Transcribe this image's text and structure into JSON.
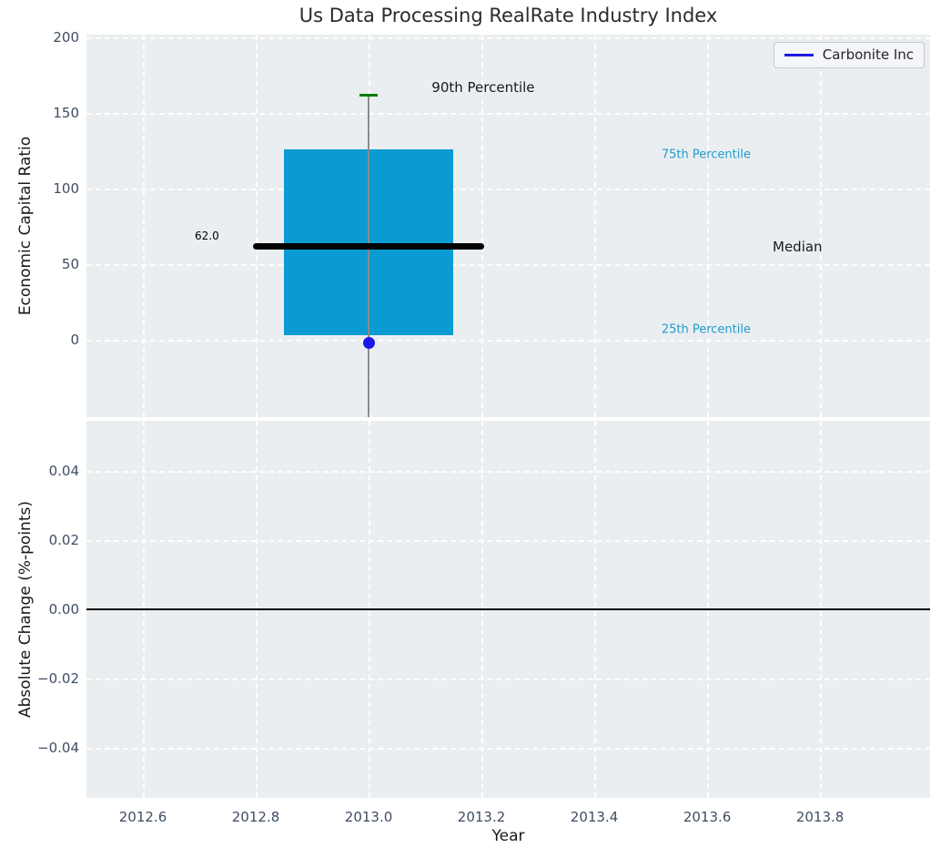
{
  "chart_data": {
    "type": "boxplot",
    "title": "Us Data Processing RealRate Industry Index",
    "legend": {
      "label": "Carbonite Inc",
      "line_color": "#1a1ae8",
      "position": "upper right"
    },
    "grid": "white dashed on light panel",
    "top_panel": {
      "ylabel": "Economic Capital Ratio",
      "xlim": [
        2012.5,
        2013.995
      ],
      "ylim": [
        -51,
        202
      ],
      "yticks": {
        "values": [
          0,
          50,
          100,
          150,
          200
        ],
        "labels": [
          "0",
          "50",
          "100",
          "150",
          "200"
        ]
      },
      "box": {
        "x": 2013.0,
        "q25": 3,
        "median": 62,
        "q75": 126,
        "p90": 162,
        "median_label": "62.0",
        "box_halfwidth": 0.15,
        "median_halfwidth": 0.205,
        "cap_halfwidth": 0.016,
        "whisker_extends_to_axis_bottom": true
      },
      "point": {
        "series": "Carbonite Inc",
        "x": 2013.0,
        "y": -2
      },
      "annotations": [
        {
          "text": "62.0",
          "x": 2012.735,
          "y": 69,
          "align": "right",
          "kind": "value-label"
        },
        {
          "text": "90th Percentile",
          "x": 2013.203,
          "y": 167,
          "align": "center",
          "kind": "dark-label"
        },
        {
          "text": "75th Percentile",
          "x": 2013.519,
          "y": 122.5,
          "align": "left",
          "kind": "cyan-label"
        },
        {
          "text": "Median",
          "x": 2013.76,
          "y": 61.5,
          "align": "center",
          "kind": "dark-label"
        },
        {
          "text": "25th Percentile",
          "x": 2013.519,
          "y": 6.8,
          "align": "left",
          "kind": "cyan-label"
        }
      ]
    },
    "bottom_panel": {
      "ylabel": "Absolute Change (%-points)",
      "xlabel": "Year",
      "xlim": [
        2012.5,
        2013.995
      ],
      "ylim": [
        -0.0546,
        0.0546
      ],
      "yticks": {
        "values": [
          -0.04,
          -0.02,
          0,
          0.02,
          0.04
        ],
        "labels": [
          "−0.04",
          "−0.02",
          "0.00",
          "0.02",
          "0.04"
        ]
      },
      "xticks": {
        "values": [
          2012.6,
          2012.8,
          2013.0,
          2013.2,
          2013.4,
          2013.6,
          2013.8
        ],
        "labels": [
          "2012.6",
          "2012.8",
          "2013.0",
          "2013.2",
          "2013.4",
          "2013.6",
          "2013.8"
        ]
      },
      "zero_line": 0.0
    },
    "colors": {
      "box_fill": "#0a9bd2",
      "median_line": "#000000",
      "whisker": "#8a8a8a",
      "cap_90th": "#007d00",
      "point": "#1a1ae8",
      "cyan_label": "#249ccd",
      "axes_bg": "#eaeef0",
      "grid": "#fdfefe",
      "tick_label": "#3f4d63",
      "zero_line": "#000000",
      "title": "#2b2b2b"
    }
  }
}
